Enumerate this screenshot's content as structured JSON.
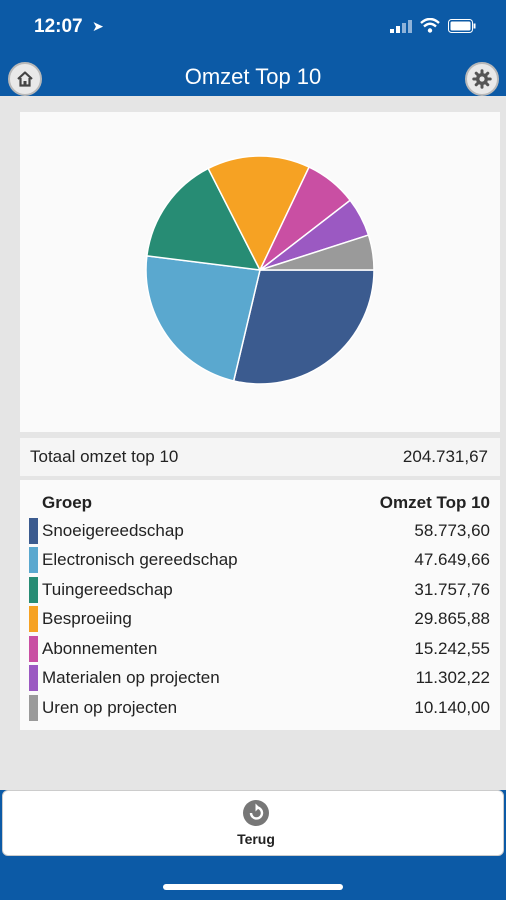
{
  "status": {
    "time": "12:07"
  },
  "header": {
    "title": "Omzet Top 10"
  },
  "chart_data": {
    "type": "pie",
    "categories": [
      "Snoeigereedschap",
      "Electronisch gereedschap",
      "Tuingereedschap",
      "Besproeiing",
      "Abonnementen",
      "Materialen op projecten",
      "Uren op projecten"
    ],
    "values": [
      58773.6,
      47649.66,
      31757.76,
      29865.88,
      15242.55,
      11302.22,
      10140.0
    ],
    "colors": [
      "#3b5b8f",
      "#5aa8cf",
      "#278c74",
      "#f6a223",
      "#c94fa3",
      "#9b59c2",
      "#9a9a9a"
    ]
  },
  "total": {
    "label": "Totaal omzet top 10",
    "value": "204.731,67"
  },
  "table": {
    "col_group": "Groep",
    "col_omzet": "Omzet Top 10",
    "rows": [
      {
        "label": "Snoeigereedschap",
        "value": "58.773,60",
        "color": "#3b5b8f"
      },
      {
        "label": "Electronisch gereedschap",
        "value": "47.649,66",
        "color": "#5aa8cf"
      },
      {
        "label": "Tuingereedschap",
        "value": "31.757,76",
        "color": "#278c74"
      },
      {
        "label": "Besproeiing",
        "value": "29.865,88",
        "color": "#f6a223"
      },
      {
        "label": "Abonnementen",
        "value": "15.242,55",
        "color": "#c94fa3"
      },
      {
        "label": "Materialen op projecten",
        "value": "11.302,22",
        "color": "#9b59c2"
      },
      {
        "label": "Uren op projecten",
        "value": "10.140,00",
        "color": "#9a9a9a"
      }
    ]
  },
  "footer": {
    "back_label": "Terug"
  }
}
